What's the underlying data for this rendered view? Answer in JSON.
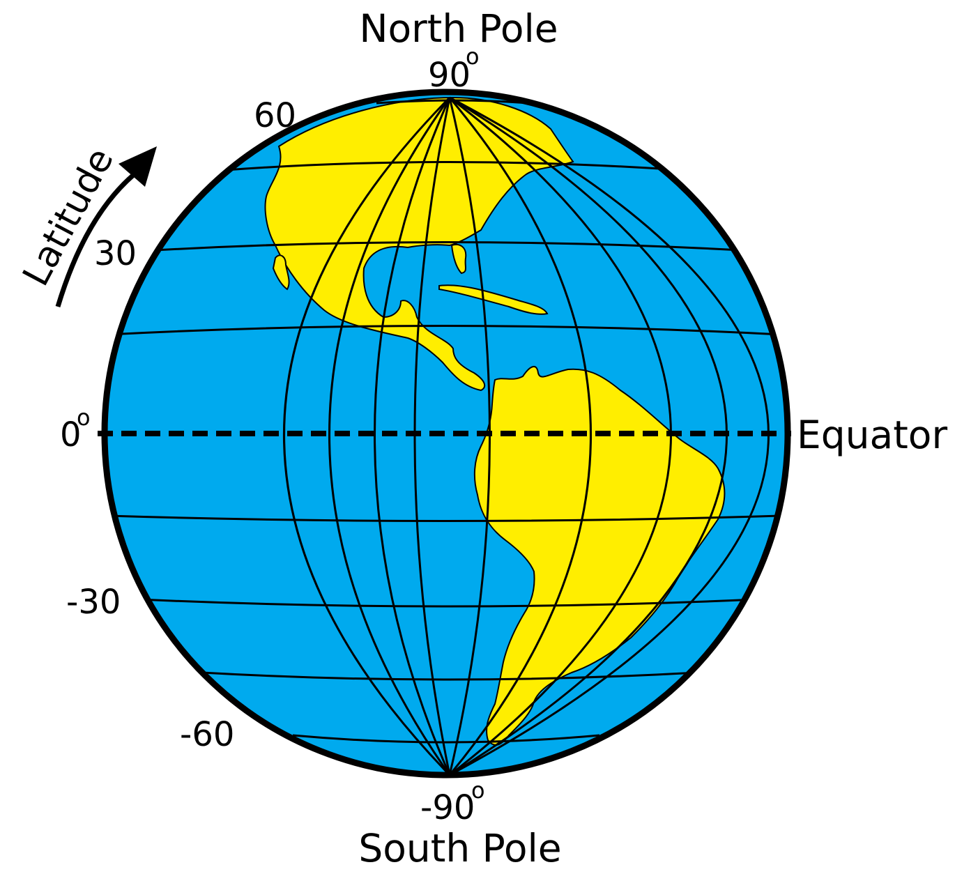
{
  "labels": {
    "north_pole": "North Pole",
    "south_pole": "South Pole",
    "equator": "Equator",
    "latitude": "Latitude"
  },
  "latitude_ticks": {
    "north_90": "90",
    "lat_60": "60",
    "lat_30": "30",
    "zero": "0",
    "lat_neg_30": "-30",
    "lat_neg_60": "-60",
    "south_neg_90": "-90",
    "degree_symbol": "o"
  },
  "colors": {
    "ocean": "#00aaee",
    "land": "#ffee00",
    "outline": "#000000"
  },
  "icons": {
    "arrow": "curved-arrow-icon",
    "globe": "globe-icon"
  }
}
